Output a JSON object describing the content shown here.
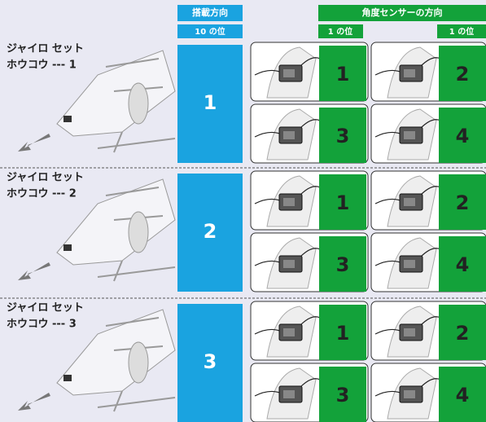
{
  "header": {
    "mount_direction": "搭載方向",
    "tens": "10 の位",
    "sensor_direction": "角度センサーの方向",
    "ones": [
      "1 の位",
      "1 の位"
    ]
  },
  "groups": [
    {
      "label_line1": "ジャイロ セット",
      "label_line2": "ホウコウ --- 1",
      "tens": "1",
      "cells": [
        "1",
        "2",
        "3",
        "4"
      ]
    },
    {
      "label_line1": "ジャイロ セット",
      "label_line2": "ホウコウ --- 2",
      "tens": "2",
      "cells": [
        "1",
        "2",
        "3",
        "4"
      ]
    },
    {
      "label_line1": "ジャイロ セット",
      "label_line2": "ホウコウ --- 3",
      "tens": "3",
      "cells": [
        "1",
        "2",
        "3",
        "4"
      ]
    }
  ]
}
